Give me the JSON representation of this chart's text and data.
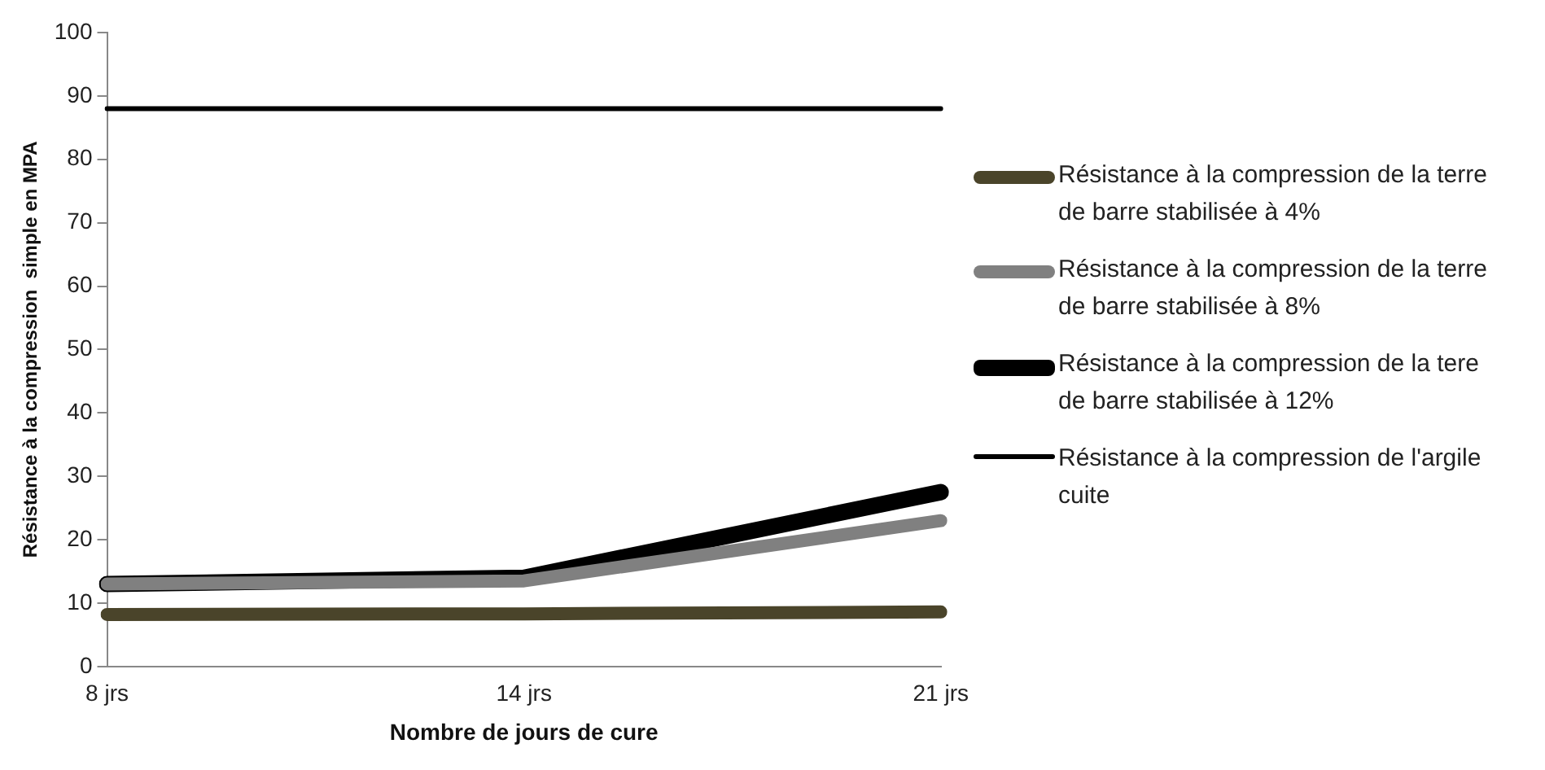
{
  "chart_data": {
    "type": "line",
    "xlabel": "Nombre de jours de cure",
    "ylabel": "Résistance à la compression  simple en MPA",
    "categories": [
      "8 jrs",
      "14 jrs",
      "21 jrs"
    ],
    "series": [
      {
        "name": "Résistance à la compression de la terre de barre stabilisée à 4%",
        "color": "#4a442a",
        "values": [
          8.2,
          8.3,
          8.6
        ]
      },
      {
        "name": "Résistance à la compression de la terre de barre stabilisée à 8%",
        "color": "#808080",
        "values": [
          13,
          13.5,
          23
        ]
      },
      {
        "name": "Résistance à la compression de la tere de barre stabilisée à 12%",
        "color": "#000000",
        "values": [
          13,
          14,
          27.5
        ]
      },
      {
        "name": "Résistance à la compression de l'argile cuite",
        "color": "#000000",
        "values": [
          88,
          88,
          88
        ]
      }
    ],
    "ylim": [
      0,
      100
    ],
    "yticks": [
      0,
      10,
      20,
      30,
      40,
      50,
      60,
      70,
      80,
      90,
      100
    ],
    "grid": false,
    "legend": "right",
    "marker": "none",
    "line_style": "solid"
  }
}
